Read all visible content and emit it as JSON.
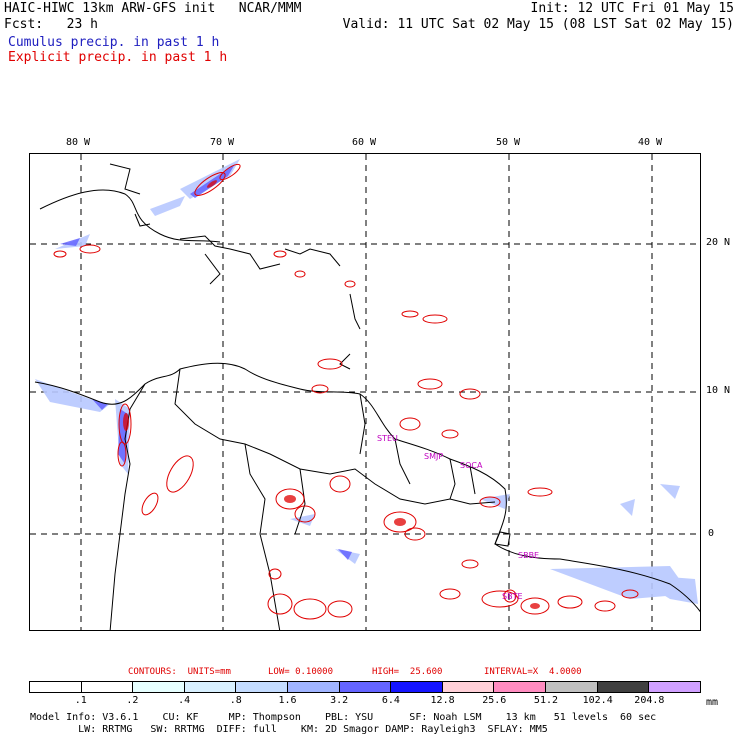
{
  "header": {
    "title_left": "HAIC-HIWC 13km ARW-GFS init   NCAR/MMM",
    "init_right": "Init: 12 UTC Fri 01 May 15",
    "fcst_left": "Fcst:   23 h",
    "valid_right": "Valid: 11 UTC Sat 02 May 15 (08 LST Sat 02 May 15)",
    "cumulus_line": "Cumulus precip. in past 1 h",
    "explicit_line": "Explicit precip. in past 1 h",
    "cumulus_color": "#2020c0",
    "explicit_color": "#e00000"
  },
  "map": {
    "lon_labels": [
      "80 W",
      "70 W",
      "60 W",
      "50 W",
      "40 W"
    ],
    "lat_labels": [
      "20 N",
      "10 N",
      "0"
    ],
    "stations": [
      "STEU",
      "SMJP",
      "SOCA",
      "SBBE",
      "SBTE"
    ]
  },
  "contours": {
    "label": "CONTOURS:  UNITS=mm",
    "low": "LOW= 0.10000",
    "high": "HIGH=  25.600",
    "interval": "INTERVAL=X  4.0000"
  },
  "legend": {
    "units": "mm",
    "labels": [
      ".1",
      ".2",
      ".4",
      ".8",
      "1.6",
      "3.2",
      "6.4",
      "12.8",
      "25.6",
      "51.2",
      "102.4",
      "204.8"
    ],
    "colors": [
      "#ffffff",
      "#ffffff",
      "#e6ffff",
      "#d8f0ff",
      "#c4dcff",
      "#a0b4ff",
      "#6464ff",
      "#1414ff",
      "#ffd0d8",
      "#ff8cc0",
      "#c0c0c0",
      "#404040",
      "#d0a0ff"
    ]
  },
  "footer": {
    "line1": "Model Info: V3.6.1    CU: KF     MP: Thompson    PBL: YSU      SF: Noah LSM    13 km   51 levels  60 sec",
    "line2": "        LW: RRTMG   SW: RRTMG  DIFF: full    KM: 2D Smagor DAMP: Rayleigh3  SFLAY: MM5"
  }
}
